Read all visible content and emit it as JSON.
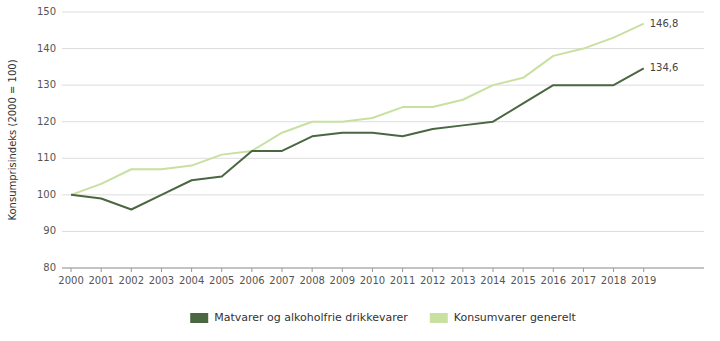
{
  "chart_data": {
    "type": "line",
    "y_label": "Konsumprisindeks (2000 = 100)",
    "x": [
      2000,
      2001,
      2002,
      2003,
      2004,
      2005,
      2006,
      2007,
      2008,
      2009,
      2010,
      2011,
      2012,
      2013,
      2014,
      2015,
      2016,
      2017,
      2018,
      2019
    ],
    "series": [
      {
        "name": "Matvarer og alkoholfrie drikkevarer",
        "color": "#4a6741",
        "values": [
          100,
          99,
          96,
          100,
          104,
          105,
          112,
          112,
          116,
          117,
          117,
          116,
          118,
          119,
          120,
          125,
          130,
          130,
          130,
          134.6
        ],
        "value_labels": [
          null,
          null,
          null,
          null,
          null,
          null,
          null,
          null,
          null,
          null,
          null,
          null,
          null,
          null,
          null,
          null,
          null,
          null,
          null,
          "134,6"
        ]
      },
      {
        "name": "Konsumvarer generelt",
        "color": "#c8e0a0",
        "values": [
          100,
          103,
          107,
          107,
          108,
          111,
          112,
          117,
          120,
          120,
          121,
          124,
          124,
          126,
          130,
          132,
          138,
          140,
          143,
          146.8
        ],
        "value_labels": [
          null,
          null,
          null,
          null,
          null,
          null,
          null,
          null,
          null,
          null,
          null,
          null,
          null,
          null,
          null,
          null,
          null,
          null,
          null,
          "146,8"
        ]
      }
    ],
    "xlim": [
      1999.7,
      2021.0
    ],
    "xticks": [
      2000,
      2001,
      2002,
      2003,
      2004,
      2005,
      2006,
      2007,
      2008,
      2009,
      2010,
      2011,
      2012,
      2013,
      2014,
      2015,
      2016,
      2017,
      2018,
      2019
    ],
    "ylim": [
      80,
      150
    ],
    "yticks": [
      80,
      90,
      100,
      110,
      120,
      130,
      140,
      150
    ],
    "grid": true,
    "legend": "bottom"
  }
}
